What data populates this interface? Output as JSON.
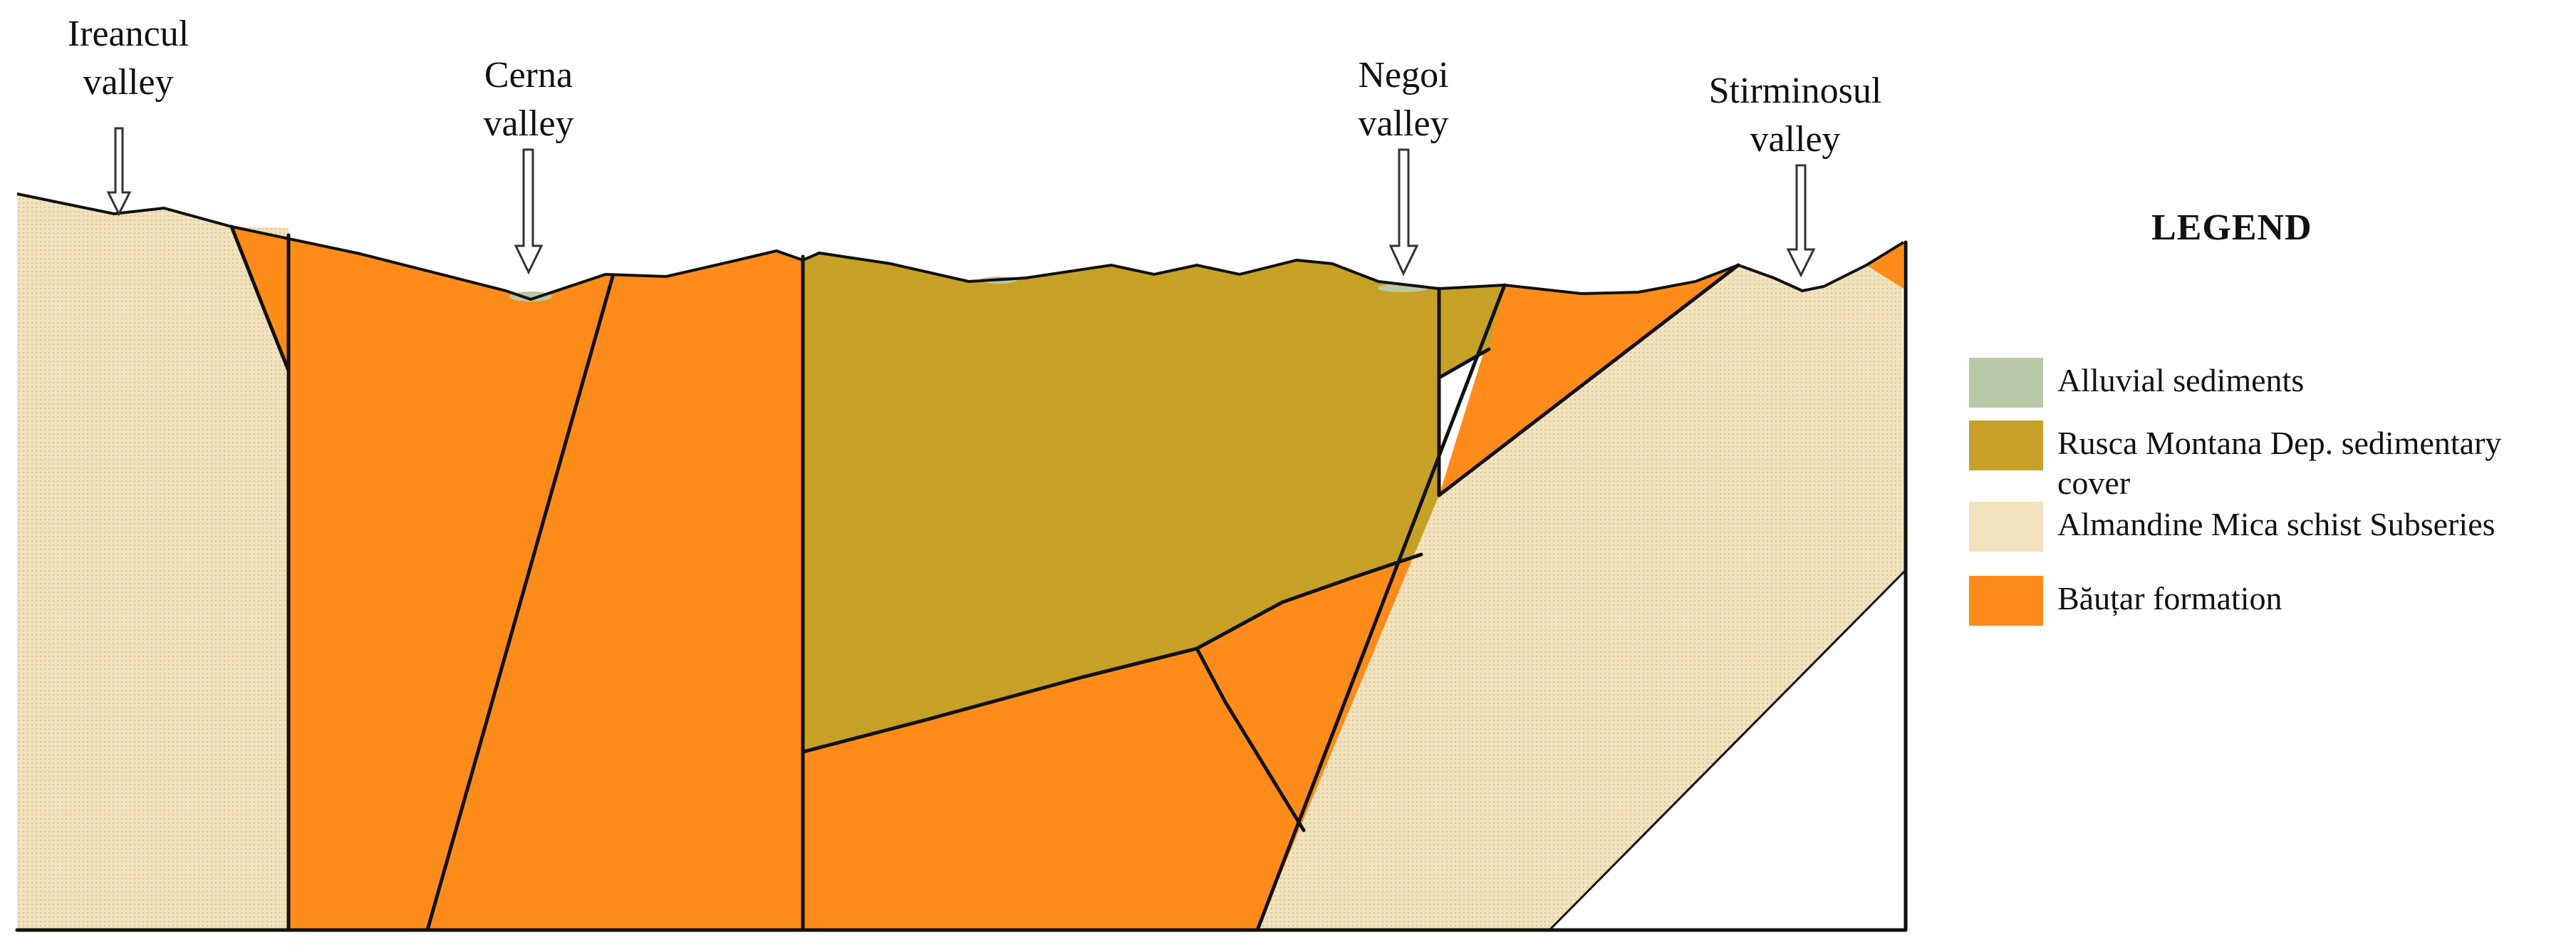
{
  "valleys": [
    {
      "line1": "Ireancul",
      "line2": "valley"
    },
    {
      "line1": "Cerna",
      "line2": "valley"
    },
    {
      "line1": "Negoi",
      "line2": "valley"
    },
    {
      "line1": "Stirminosul",
      "line2": "valley"
    }
  ],
  "legend": {
    "title": "LEGEND",
    "items": [
      {
        "label_line1": "Alluvial sediments",
        "label_line2": "",
        "color": "#b9c8a6"
      },
      {
        "label_line1": "Rusca Montana Dep. sedimentary",
        "label_line2": "cover",
        "color": "#c7a126"
      },
      {
        "label_line1": "Almandine Mica schist Subseries",
        "label_line2": "",
        "color": "#f2e2bd"
      },
      {
        "label_line1": "Băuțar formation",
        "label_line2": "",
        "color": "#ff8c1a"
      }
    ]
  },
  "colors": {
    "alluvial": "#b9c8a6",
    "rusca": "#c7a126",
    "mica_schist": "#f2e2bd",
    "bautar": "#ff8c1a",
    "line": "#111111"
  }
}
